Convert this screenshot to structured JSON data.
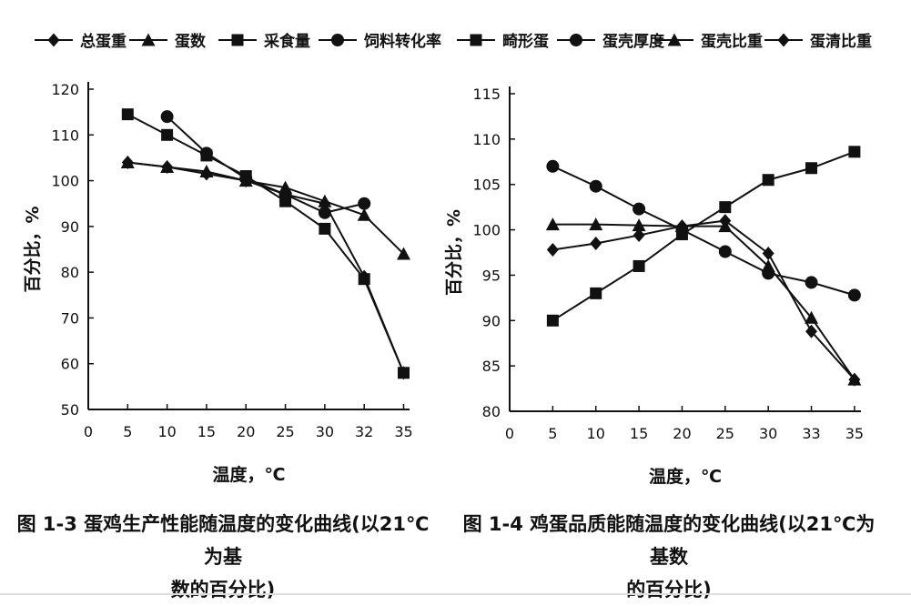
{
  "chart_data": [
    {
      "type": "line",
      "title": "图 1-3 蛋鸡生产性能随温度的变化曲线(以21℃为基数的百分比)",
      "xlabel": "温度，℃",
      "ylabel": "百分比，%",
      "xticks": [
        "0",
        "5",
        "10",
        "15",
        "20",
        "25",
        "30",
        "32",
        "35"
      ],
      "yticks": [
        "50",
        "60",
        "70",
        "80",
        "90",
        "100",
        "110",
        "120"
      ],
      "ylim": [
        50,
        120
      ],
      "legend_position": "top",
      "series": [
        {
          "name": "总蛋重",
          "marker": "diamond",
          "x": [
            "5",
            "10",
            "15",
            "20",
            "25",
            "30",
            "32",
            "35"
          ],
          "values": [
            104,
            103,
            101.5,
            100,
            97,
            95,
            79,
            58
          ]
        },
        {
          "name": "蛋数",
          "marker": "triangle",
          "x": [
            "5",
            "10",
            "15",
            "20",
            "25",
            "30",
            "32",
            "35"
          ],
          "values": [
            104,
            103,
            102,
            100,
            98.5,
            95.5,
            92.5,
            84
          ]
        },
        {
          "name": "采食量",
          "marker": "square",
          "x": [
            "5",
            "10",
            "15",
            "20",
            "25",
            "30",
            "32",
            "35"
          ],
          "values": [
            114.5,
            110,
            105.5,
            101,
            95.5,
            89.5,
            78.5,
            58
          ]
        },
        {
          "name": "饲料转化率",
          "marker": "circle",
          "x": [
            "10",
            "15",
            "20",
            "25",
            "30",
            "32"
          ],
          "values": [
            114,
            106,
            100.5,
            97,
            93,
            95
          ]
        }
      ]
    },
    {
      "type": "line",
      "title": "图 1-4 鸡蛋品质随温度的变化曲线(以21℃为基数的百分比)",
      "xlabel": "温度，℃",
      "ylabel": "百分比，%",
      "xticks": [
        "0",
        "5",
        "10",
        "15",
        "20",
        "25",
        "30",
        "33",
        "35"
      ],
      "yticks": [
        "80",
        "85",
        "90",
        "95",
        "100",
        "105",
        "110",
        "115"
      ],
      "ylim": [
        80,
        115
      ],
      "legend_position": "top",
      "series": [
        {
          "name": "畸形蛋",
          "marker": "square",
          "x": [
            "5",
            "10",
            "15",
            "20",
            "25",
            "30",
            "33",
            "35"
          ],
          "values": [
            90,
            93,
            96,
            99.5,
            102.5,
            105.5,
            106.8,
            108.6
          ]
        },
        {
          "name": "蛋壳厚度",
          "marker": "circle",
          "x": [
            "5",
            "10",
            "15",
            "20",
            "25",
            "30",
            "33",
            "35"
          ],
          "values": [
            107,
            104.8,
            102.3,
            100,
            97.6,
            95.2,
            94.2,
            92.8
          ]
        },
        {
          "name": "蛋壳比重",
          "marker": "triangle",
          "x": [
            "5",
            "10",
            "15",
            "20",
            "25",
            "30",
            "33",
            "35"
          ],
          "values": [
            100.6,
            100.6,
            100.5,
            100.4,
            100.4,
            96,
            90.3,
            83.5
          ]
        },
        {
          "name": "蛋清比重",
          "marker": "diamond",
          "x": [
            "5",
            "10",
            "15",
            "20",
            "25",
            "30",
            "33",
            "35"
          ],
          "values": [
            97.8,
            98.5,
            99.4,
            100.4,
            101,
            97.4,
            88.8,
            83.5
          ]
        }
      ]
    }
  ],
  "captions": {
    "left_line1": "图 1-3 蛋鸡生产性能随温度的变化曲线(以21℃为基",
    "left_line2": "数的百分比)",
    "right_line1": "图 1-4 鸡蛋品质能随温度的变化曲线(以21℃为基数",
    "right_line2": "的百分比)"
  }
}
